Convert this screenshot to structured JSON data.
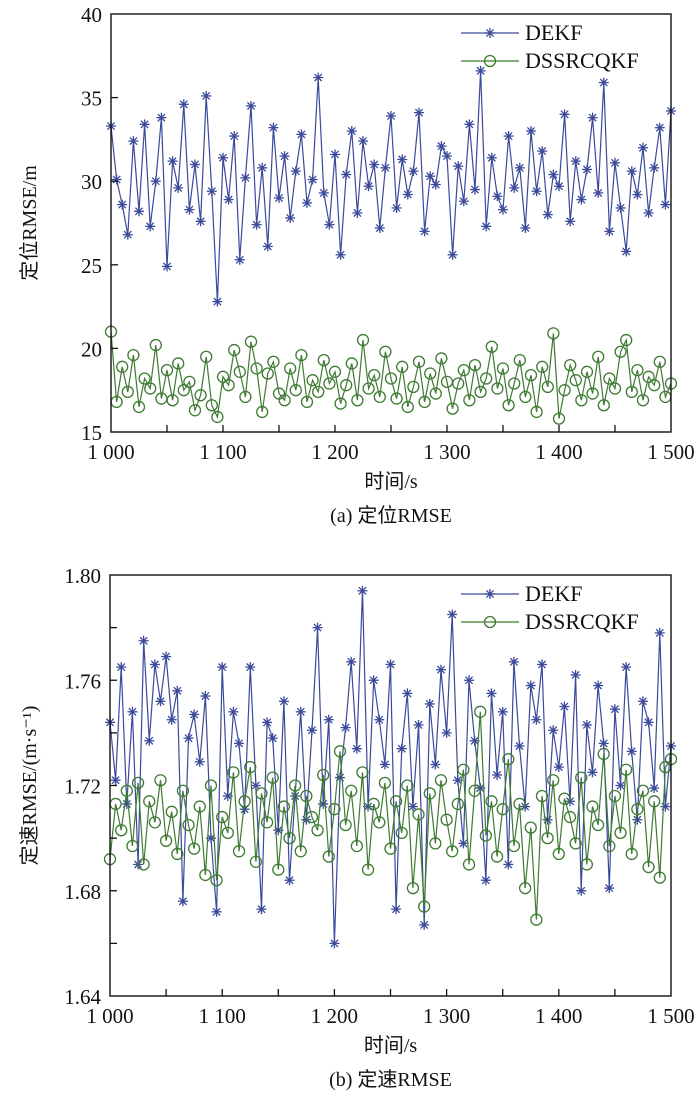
{
  "chart_data": [
    {
      "type": "line",
      "title": "",
      "caption": "(a) 定位RMSE",
      "xlabel": "时间/s",
      "ylabel": "定位RMSE/m",
      "xlim": [
        1000,
        1500
      ],
      "ylim": [
        15,
        40
      ],
      "xticks": [
        1000,
        1100,
        1200,
        1300,
        1400,
        1500
      ],
      "xtick_labels": [
        "1 000",
        "1 100",
        "1 200",
        "1 300",
        "1 400",
        "1 500"
      ],
      "yticks": [
        15,
        20,
        25,
        30,
        35,
        40
      ],
      "ytick_labels": [
        "15",
        "20",
        "25",
        "30",
        "35",
        "40"
      ],
      "grid": false,
      "legend_position": "top-right",
      "x": [
        1000,
        1005,
        1010,
        1015,
        1020,
        1025,
        1030,
        1035,
        1040,
        1045,
        1050,
        1055,
        1060,
        1065,
        1070,
        1075,
        1080,
        1085,
        1090,
        1095,
        1100,
        1105,
        1110,
        1115,
        1120,
        1125,
        1130,
        1135,
        1140,
        1145,
        1150,
        1155,
        1160,
        1165,
        1170,
        1175,
        1180,
        1185,
        1190,
        1195,
        1200,
        1205,
        1210,
        1215,
        1220,
        1225,
        1230,
        1235,
        1240,
        1245,
        1250,
        1255,
        1260,
        1265,
        1270,
        1275,
        1280,
        1285,
        1290,
        1295,
        1300,
        1305,
        1310,
        1315,
        1320,
        1325,
        1330,
        1335,
        1340,
        1345,
        1350,
        1355,
        1360,
        1365,
        1370,
        1375,
        1380,
        1385,
        1390,
        1395,
        1400,
        1405,
        1410,
        1415,
        1420,
        1425,
        1430,
        1435,
        1440,
        1445,
        1450,
        1455,
        1460,
        1465,
        1470,
        1475,
        1480,
        1485,
        1490,
        1495,
        1500
      ],
      "series": [
        {
          "name": "DEKF",
          "color": "#3b4a9a",
          "marker": "asterisk",
          "values": [
            33.3,
            30.1,
            28.6,
            26.8,
            32.4,
            28.2,
            33.4,
            27.3,
            30.0,
            33.8,
            24.9,
            31.2,
            29.6,
            34.6,
            28.3,
            31.0,
            27.6,
            35.1,
            29.4,
            22.8,
            31.4,
            28.9,
            32.7,
            25.3,
            30.2,
            34.5,
            27.4,
            30.8,
            26.1,
            33.2,
            29.0,
            31.5,
            27.8,
            30.6,
            32.8,
            28.7,
            30.1,
            36.2,
            29.3,
            27.4,
            31.6,
            25.6,
            30.4,
            33.0,
            28.1,
            32.4,
            29.7,
            31.0,
            27.2,
            30.8,
            33.9,
            28.4,
            31.3,
            29.2,
            30.6,
            34.1,
            27.0,
            30.3,
            29.8,
            32.1,
            31.5,
            25.6,
            30.9,
            28.8,
            33.4,
            29.5,
            36.6,
            27.3,
            31.4,
            29.1,
            28.3,
            32.7,
            29.6,
            30.8,
            27.2,
            33.0,
            29.4,
            31.8,
            28.0,
            30.4,
            29.7,
            34.0,
            27.6,
            31.2,
            28.9,
            30.7,
            33.8,
            29.3,
            35.9,
            27.0,
            31.1,
            28.4,
            25.8,
            30.6,
            29.2,
            32.0,
            28.1,
            30.8,
            33.2,
            28.6,
            34.2
          ]
        },
        {
          "name": "DSSRCQKF",
          "color": "#3e7a32",
          "marker": "circle",
          "values": [
            21.0,
            16.8,
            18.9,
            17.4,
            19.6,
            16.5,
            18.2,
            17.6,
            20.2,
            17.0,
            18.7,
            16.9,
            19.1,
            17.5,
            18.0,
            16.3,
            17.2,
            19.5,
            16.6,
            15.9,
            18.3,
            17.8,
            19.9,
            18.6,
            17.1,
            20.4,
            18.8,
            16.2,
            18.5,
            19.2,
            17.3,
            16.9,
            18.8,
            17.5,
            19.6,
            16.8,
            18.1,
            17.4,
            19.3,
            17.9,
            18.6,
            16.7,
            17.8,
            19.1,
            16.9,
            20.5,
            17.6,
            18.4,
            17.1,
            19.8,
            18.2,
            17.0,
            18.9,
            16.5,
            17.7,
            19.2,
            16.8,
            18.5,
            17.3,
            19.4,
            18.0,
            16.4,
            17.9,
            18.7,
            16.9,
            19.0,
            17.4,
            18.2,
            20.1,
            17.6,
            18.8,
            16.6,
            17.9,
            19.3,
            17.1,
            18.4,
            16.2,
            18.9,
            17.7,
            20.9,
            15.8,
            17.5,
            19.0,
            18.1,
            16.9,
            18.6,
            17.3,
            19.5,
            16.6,
            18.2,
            17.6,
            19.8,
            20.5,
            17.4,
            18.7,
            16.9,
            18.3,
            17.8,
            19.2,
            17.1,
            17.9
          ]
        }
      ]
    },
    {
      "type": "line",
      "title": "",
      "caption": "(b) 定速RMSE",
      "xlabel": "时间/s",
      "ylabel": "定速RMSE/(m·s⁻¹)",
      "xlim": [
        1000,
        1500
      ],
      "ylim": [
        1.64,
        1.8
      ],
      "xticks": [
        1000,
        1100,
        1200,
        1300,
        1400,
        1500
      ],
      "xtick_labels": [
        "1 000",
        "1 100",
        "1 200",
        "1 300",
        "1 400",
        "1 500"
      ],
      "yticks": [
        1.64,
        1.68,
        1.72,
        1.76,
        1.8
      ],
      "ytick_labels": [
        "1.64",
        "1.68",
        "1.72",
        "1.76",
        "1.80"
      ],
      "grid": false,
      "legend_position": "top-right",
      "x": [
        1000,
        1005,
        1010,
        1015,
        1020,
        1025,
        1030,
        1035,
        1040,
        1045,
        1050,
        1055,
        1060,
        1065,
        1070,
        1075,
        1080,
        1085,
        1090,
        1095,
        1100,
        1105,
        1110,
        1115,
        1120,
        1125,
        1130,
        1135,
        1140,
        1145,
        1150,
        1155,
        1160,
        1165,
        1170,
        1175,
        1180,
        1185,
        1190,
        1195,
        1200,
        1205,
        1210,
        1215,
        1220,
        1225,
        1230,
        1235,
        1240,
        1245,
        1250,
        1255,
        1260,
        1265,
        1270,
        1275,
        1280,
        1285,
        1290,
        1295,
        1300,
        1305,
        1310,
        1315,
        1320,
        1325,
        1330,
        1335,
        1340,
        1345,
        1350,
        1355,
        1360,
        1365,
        1370,
        1375,
        1380,
        1385,
        1390,
        1395,
        1400,
        1405,
        1410,
        1415,
        1420,
        1425,
        1430,
        1435,
        1440,
        1445,
        1450,
        1455,
        1460,
        1465,
        1470,
        1475,
        1480,
        1485,
        1490,
        1495,
        1500
      ],
      "series": [
        {
          "name": "DEKF",
          "color": "#3b4a9a",
          "marker": "asterisk",
          "values": [
            1.744,
            1.722,
            1.765,
            1.713,
            1.748,
            1.69,
            1.775,
            1.737,
            1.766,
            1.752,
            1.769,
            1.745,
            1.756,
            1.676,
            1.738,
            1.747,
            1.729,
            1.754,
            1.7,
            1.672,
            1.765,
            1.716,
            1.748,
            1.736,
            1.711,
            1.765,
            1.72,
            1.673,
            1.744,
            1.738,
            1.703,
            1.752,
            1.684,
            1.716,
            1.748,
            1.707,
            1.741,
            1.78,
            1.713,
            1.745,
            1.66,
            1.723,
            1.742,
            1.767,
            1.734,
            1.794,
            1.712,
            1.76,
            1.745,
            1.728,
            1.766,
            1.673,
            1.734,
            1.755,
            1.712,
            1.743,
            1.667,
            1.751,
            1.728,
            1.764,
            1.74,
            1.785,
            1.722,
            1.698,
            1.76,
            1.737,
            1.719,
            1.684,
            1.755,
            1.724,
            1.748,
            1.69,
            1.767,
            1.735,
            1.712,
            1.758,
            1.745,
            1.766,
            1.707,
            1.741,
            1.727,
            1.75,
            1.714,
            1.762,
            1.68,
            1.743,
            1.725,
            1.758,
            1.736,
            1.681,
            1.749,
            1.72,
            1.765,
            1.733,
            1.707,
            1.752,
            1.744,
            1.719,
            1.778,
            1.712,
            1.735
          ]
        },
        {
          "name": "DSSRCQKF",
          "color": "#3e7a32",
          "marker": "circle",
          "values": [
            1.692,
            1.713,
            1.703,
            1.718,
            1.697,
            1.721,
            1.69,
            1.714,
            1.706,
            1.722,
            1.699,
            1.71,
            1.694,
            1.718,
            1.705,
            1.696,
            1.712,
            1.686,
            1.72,
            1.684,
            1.708,
            1.702,
            1.725,
            1.695,
            1.714,
            1.727,
            1.691,
            1.717,
            1.706,
            1.723,
            1.688,
            1.712,
            1.7,
            1.72,
            1.695,
            1.716,
            1.708,
            1.703,
            1.724,
            1.693,
            1.711,
            1.733,
            1.705,
            1.718,
            1.697,
            1.725,
            1.688,
            1.713,
            1.706,
            1.721,
            1.696,
            1.714,
            1.702,
            1.72,
            1.681,
            1.709,
            1.674,
            1.717,
            1.698,
            1.722,
            1.707,
            1.695,
            1.713,
            1.726,
            1.69,
            1.718,
            1.748,
            1.701,
            1.714,
            1.693,
            1.711,
            1.73,
            1.697,
            1.713,
            1.681,
            1.704,
            1.669,
            1.716,
            1.7,
            1.722,
            1.694,
            1.715,
            1.708,
            1.698,
            1.723,
            1.69,
            1.712,
            1.705,
            1.732,
            1.697,
            1.716,
            1.702,
            1.726,
            1.694,
            1.711,
            1.718,
            1.689,
            1.714,
            1.685,
            1.727,
            1.73
          ]
        }
      ]
    }
  ]
}
